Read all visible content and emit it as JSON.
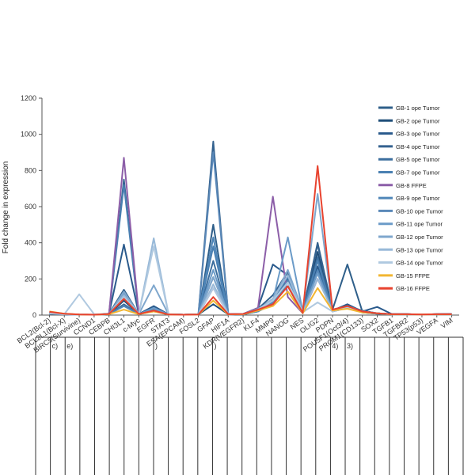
{
  "chart_data": {
    "type": "line",
    "title": "",
    "xlabel": "",
    "ylabel": "Fold change in expression",
    "ylim": [
      0,
      1200
    ],
    "yticks": [
      0,
      200,
      400,
      600,
      800,
      1000,
      1200
    ],
    "grid": false,
    "legend_position": "top-right",
    "categories": [
      "BCL2(Bcl-2)",
      "BCL2L1(Bcl-X)",
      "BIRC5(Survivine)",
      "CCND1",
      "CEBPB",
      "CHI3L1",
      "c-Myc",
      "EGFR",
      "STAT3",
      "ESA(EPCAM)",
      "FOSL2",
      "GFAP",
      "HIF1A",
      "KDR(VEGFR2)",
      "KLF4",
      "MMP9",
      "NANOG",
      "NES",
      "OLIG2",
      "PDPN",
      "POU5F1(Oct3/4)",
      "PROM1(CD133)",
      "SOX2",
      "TGFB1",
      "TGFBR2",
      "TP53(p53)",
      "VEGFA",
      "VIM"
    ],
    "series": [
      {
        "name": "GB-1 ope Tumor",
        "color": "#2f5f8a",
        "values": [
          10,
          5,
          2,
          2,
          8,
          140,
          5,
          40,
          3,
          2,
          3,
          500,
          5,
          5,
          30,
          90,
          200,
          15,
          400,
          30,
          280,
          20,
          10,
          5,
          5,
          3,
          5,
          5
        ]
      },
      {
        "name": "GB-2 ope Tumor",
        "color": "#1f4e79",
        "values": [
          8,
          4,
          2,
          2,
          5,
          80,
          5,
          30,
          3,
          2,
          3,
          60,
          4,
          4,
          20,
          70,
          160,
          10,
          350,
          20,
          50,
          15,
          8,
          4,
          4,
          3,
          4,
          4
        ]
      },
      {
        "name": "GB-3 ope Tumor",
        "color": "#2a5a8c",
        "values": [
          12,
          6,
          3,
          2,
          6,
          390,
          6,
          50,
          4,
          2,
          3,
          210,
          5,
          6,
          40,
          280,
          220,
          20,
          270,
          25,
          60,
          20,
          45,
          5,
          5,
          3,
          5,
          6
        ]
      },
      {
        "name": "GB-4 ope Tumor",
        "color": "#34628f",
        "values": [
          10,
          5,
          2,
          2,
          6,
          750,
          6,
          40,
          3,
          2,
          3,
          960,
          5,
          5,
          35,
          110,
          240,
          25,
          390,
          30,
          50,
          25,
          10,
          5,
          5,
          3,
          5,
          5
        ]
      },
      {
        "name": "GB-5 ope Tumor",
        "color": "#3c6e9e",
        "values": [
          9,
          4,
          2,
          2,
          5,
          60,
          5,
          30,
          3,
          2,
          3,
          300,
          4,
          5,
          25,
          60,
          190,
          12,
          320,
          20,
          40,
          15,
          10,
          4,
          4,
          3,
          4,
          4
        ]
      },
      {
        "name": "GB-7 ope Tumor",
        "color": "#4a80b2",
        "values": [
          10,
          5,
          2,
          2,
          6,
          720,
          5,
          35,
          3,
          2,
          3,
          380,
          5,
          5,
          30,
          80,
          210,
          15,
          300,
          20,
          45,
          15,
          10,
          5,
          5,
          3,
          5,
          5
        ]
      },
      {
        "name": "GB-8 FFPE",
        "color": "#8c5ea8",
        "values": [
          15,
          6,
          3,
          2,
          6,
          870,
          6,
          20,
          3,
          2,
          3,
          150,
          5,
          6,
          40,
          655,
          100,
          10,
          200,
          30,
          40,
          20,
          10,
          5,
          5,
          3,
          5,
          5
        ]
      },
      {
        "name": "GB-9 ope Tumor",
        "color": "#4f86b8",
        "values": [
          8,
          4,
          2,
          2,
          5,
          50,
          5,
          25,
          3,
          2,
          3,
          430,
          4,
          4,
          20,
          60,
          180,
          12,
          250,
          20,
          40,
          15,
          8,
          4,
          4,
          3,
          4,
          4
        ]
      },
      {
        "name": "GB-10 ope Tumor",
        "color": "#5a88b8",
        "values": [
          9,
          4,
          2,
          2,
          5,
          100,
          5,
          30,
          3,
          2,
          3,
          900,
          4,
          5,
          30,
          70,
          190,
          15,
          240,
          20,
          40,
          15,
          8,
          4,
          4,
          3,
          4,
          4
        ]
      },
      {
        "name": "GB-11 ope Tumor",
        "color": "#6b9bc8",
        "values": [
          10,
          5,
          2,
          2,
          5,
          120,
          5,
          40,
          3,
          2,
          3,
          250,
          4,
          5,
          35,
          80,
          430,
          20,
          230,
          25,
          50,
          20,
          10,
          4,
          4,
          3,
          4,
          4
        ]
      },
      {
        "name": "GB-12 ope Tumor",
        "color": "#7fa7cd",
        "values": [
          10,
          5,
          2,
          2,
          5,
          130,
          5,
          165,
          3,
          2,
          3,
          210,
          4,
          5,
          30,
          80,
          250,
          20,
          670,
          25,
          50,
          20,
          10,
          4,
          4,
          3,
          4,
          4
        ]
      },
      {
        "name": "GB-13 ope Tumor",
        "color": "#98b9d8",
        "values": [
          12,
          5,
          2,
          2,
          5,
          110,
          5,
          425,
          3,
          2,
          3,
          170,
          4,
          5,
          30,
          90,
          220,
          15,
          200,
          25,
          45,
          20,
          10,
          4,
          4,
          3,
          4,
          4
        ]
      },
      {
        "name": "GB-14 ope Tumor",
        "color": "#b0c9e0",
        "values": [
          10,
          5,
          115,
          5,
          5,
          100,
          5,
          380,
          3,
          2,
          3,
          150,
          4,
          5,
          30,
          80,
          180,
          15,
          70,
          20,
          40,
          20,
          10,
          4,
          4,
          3,
          4,
          4
        ]
      },
      {
        "name": "GB-15 FFPE",
        "color": "#f2b632",
        "values": [
          20,
          8,
          3,
          2,
          5,
          30,
          5,
          20,
          3,
          2,
          3,
          80,
          4,
          5,
          25,
          50,
          130,
          10,
          150,
          25,
          35,
          15,
          10,
          4,
          4,
          3,
          4,
          4
        ]
      },
      {
        "name": "GB-16 FFPE",
        "color": "#e8432f",
        "values": [
          18,
          8,
          3,
          2,
          6,
          90,
          6,
          25,
          3,
          2,
          3,
          100,
          5,
          6,
          30,
          60,
          160,
          12,
          825,
          30,
          50,
          20,
          10,
          5,
          5,
          3,
          5,
          5
        ]
      }
    ]
  },
  "table": {
    "markers": [
      {
        "col": 1,
        "text": "c)"
      },
      {
        "col": 2,
        "text": "e)"
      },
      {
        "col": 8,
        "text": ")"
      },
      {
        "col": 12,
        "text": ")"
      },
      {
        "col": 20,
        "text": "4)"
      },
      {
        "col": 21,
        "text": "3)"
      }
    ]
  }
}
